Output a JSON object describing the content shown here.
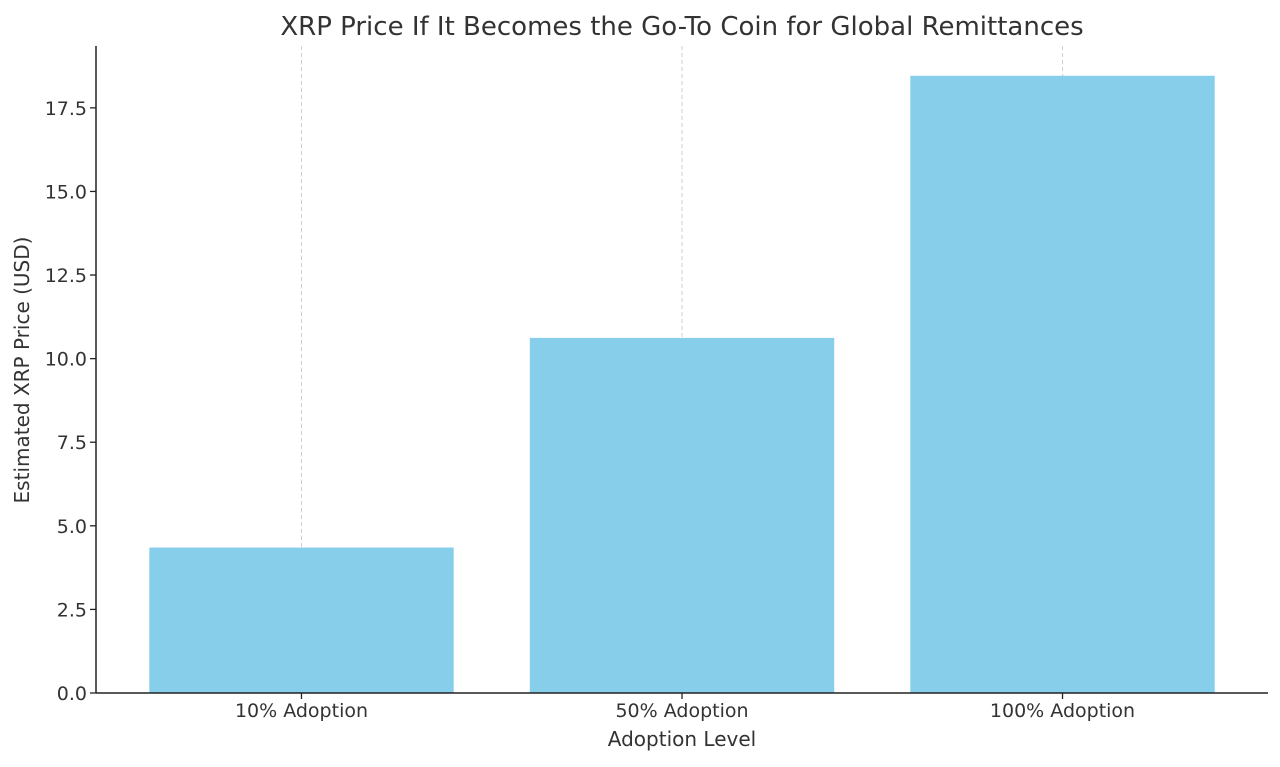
{
  "chart_data": {
    "type": "bar",
    "title": "XRP Price If It Becomes the Go-To Coin for Global Remittances",
    "xlabel": "Adoption Level",
    "ylabel": "Estimated XRP Price (USD)",
    "categories": [
      "10% Adoption",
      "50% Adoption",
      "100% Adoption"
    ],
    "values": [
      4.35,
      10.62,
      18.46
    ],
    "ylim": [
      0,
      19.35
    ],
    "yticks": [
      "0.0",
      "2.5",
      "5.0",
      "7.5",
      "10.0",
      "12.5",
      "15.0",
      "17.5"
    ],
    "grid": "vertical dashed at x ticks",
    "bar_color": "#87ceeb",
    "legend": "none"
  }
}
